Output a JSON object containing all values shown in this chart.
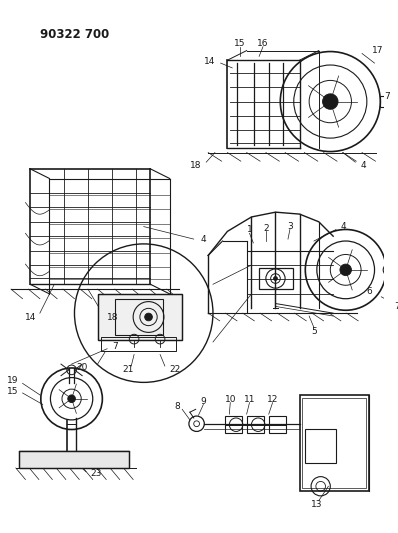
{
  "title_text": "90322 700",
  "bg_color": "#ffffff",
  "line_color": "#1a1a1a",
  "title_fontsize": 8.5,
  "label_fontsize": 6.5,
  "fig_width": 3.98,
  "fig_height": 5.33,
  "dpi": 100
}
